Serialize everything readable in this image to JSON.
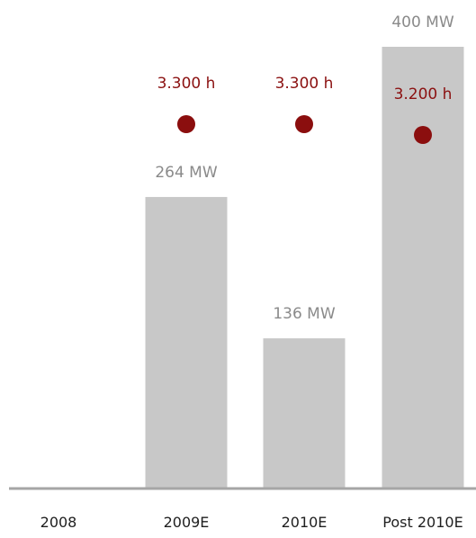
{
  "chart_data": {
    "type": "bar",
    "categories": [
      "2008",
      "2009E",
      "2010E",
      "Post 2010E"
    ],
    "values": [
      0,
      264,
      136,
      400
    ],
    "value_labels": [
      "",
      "264 MW",
      "136 MW",
      "400 MW"
    ],
    "ylim": [
      0,
      400
    ],
    "grid": false,
    "legend": "none",
    "secondary_series": {
      "type": "scatter",
      "values": [
        null,
        3300,
        3300,
        3200
      ],
      "labels": [
        "",
        "3.300 h",
        "3.300 h",
        "3.200 h"
      ]
    },
    "colors": {
      "bar": "#c8c8c8",
      "axis": "#a6a6a6",
      "dot": "#8b0e0e",
      "hours_text": "#8b1111",
      "bar_label_text": "#8a8a8a",
      "tick_text": "#1f1f1f"
    }
  }
}
